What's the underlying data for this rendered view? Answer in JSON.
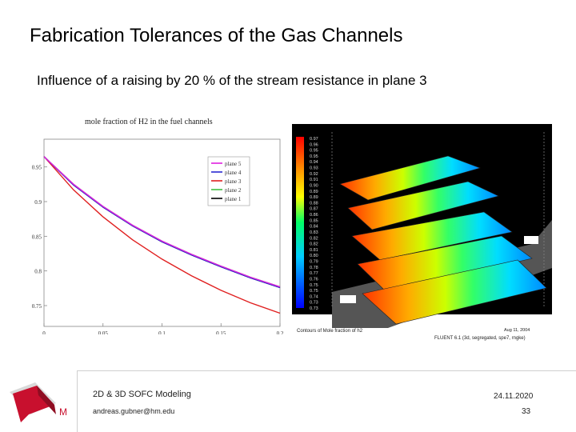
{
  "slide": {
    "title": "Fabrication Tolerances of the Gas Channels",
    "subtitle": "Influence of a raising by 20 % of the stream resistance in plane 3",
    "footer_course": "2D & 3D SOFC Modeling",
    "footer_email": "andreas.gubner@hm.edu",
    "footer_date": "24.11.2020",
    "page_number": "33"
  },
  "chart_data": {
    "type": "line",
    "title": "mole fraction of H2 in the fuel channels",
    "xlabel": "",
    "ylabel": "",
    "xlim": [
      0,
      0.2
    ],
    "ylim": [
      0.72,
      0.99
    ],
    "xticks": [
      "0",
      "0.05",
      "0.1",
      "0.15",
      "0.2"
    ],
    "yticks": [
      "0.95",
      "0.9",
      "0.85",
      "0.8",
      "0.75"
    ],
    "legend_position": "top-right",
    "series": [
      {
        "name": "plane 5",
        "color": "#e020e0",
        "x": [
          0,
          0.025,
          0.05,
          0.075,
          0.1,
          0.125,
          0.15,
          0.175,
          0.2
        ],
        "values": [
          0.965,
          0.925,
          0.893,
          0.866,
          0.843,
          0.824,
          0.807,
          0.791,
          0.777
        ]
      },
      {
        "name": "plane 4",
        "color": "#2a2ad0",
        "x": [
          0,
          0.025,
          0.05,
          0.075,
          0.1,
          0.125,
          0.15,
          0.175,
          0.2
        ],
        "values": [
          0.965,
          0.924,
          0.892,
          0.865,
          0.842,
          0.823,
          0.806,
          0.79,
          0.776
        ]
      },
      {
        "name": "plane 3",
        "color": "#e02020",
        "x": [
          0,
          0.025,
          0.05,
          0.075,
          0.1,
          0.125,
          0.15,
          0.175,
          0.2
        ],
        "values": [
          0.965,
          0.917,
          0.878,
          0.845,
          0.817,
          0.793,
          0.772,
          0.754,
          0.739
        ]
      },
      {
        "name": "plane 2",
        "color": "#40c040",
        "x": [
          0,
          0.025,
          0.05,
          0.075,
          0.1,
          0.125,
          0.15,
          0.175,
          0.2
        ],
        "values": [
          0.965,
          0.925,
          0.893,
          0.866,
          0.843,
          0.824,
          0.807,
          0.791,
          0.777
        ]
      },
      {
        "name": "plane 1",
        "color": "#000000",
        "x": [
          0,
          0.025,
          0.05,
          0.075,
          0.1,
          0.125,
          0.15,
          0.175,
          0.2
        ],
        "values": [
          0.965,
          0.924,
          0.892,
          0.865,
          0.842,
          0.823,
          0.806,
          0.79,
          0.776
        ]
      }
    ]
  },
  "contour": {
    "colorbar_labels": [
      "0.97",
      "0.96",
      "0.95",
      "0.95",
      "0.94",
      "0.93",
      "0.92",
      "0.91",
      "0.90",
      "0.89",
      "0.89",
      "0.88",
      "0.87",
      "0.86",
      "0.85",
      "0.84",
      "0.83",
      "0.82",
      "0.82",
      "0.81",
      "0.80",
      "0.79",
      "0.78",
      "0.77",
      "0.76",
      "0.75",
      "0.75",
      "0.74",
      "0.73",
      "0.73"
    ],
    "caption_left": "Contours of Mole fraction of h2",
    "caption_date": "Aug 11, 2004",
    "caption_solver": "FLUENT 6.1 (3d, segregated, spe7, rngke)"
  },
  "logo": {
    "letter": "M",
    "color": "#c8102e"
  }
}
